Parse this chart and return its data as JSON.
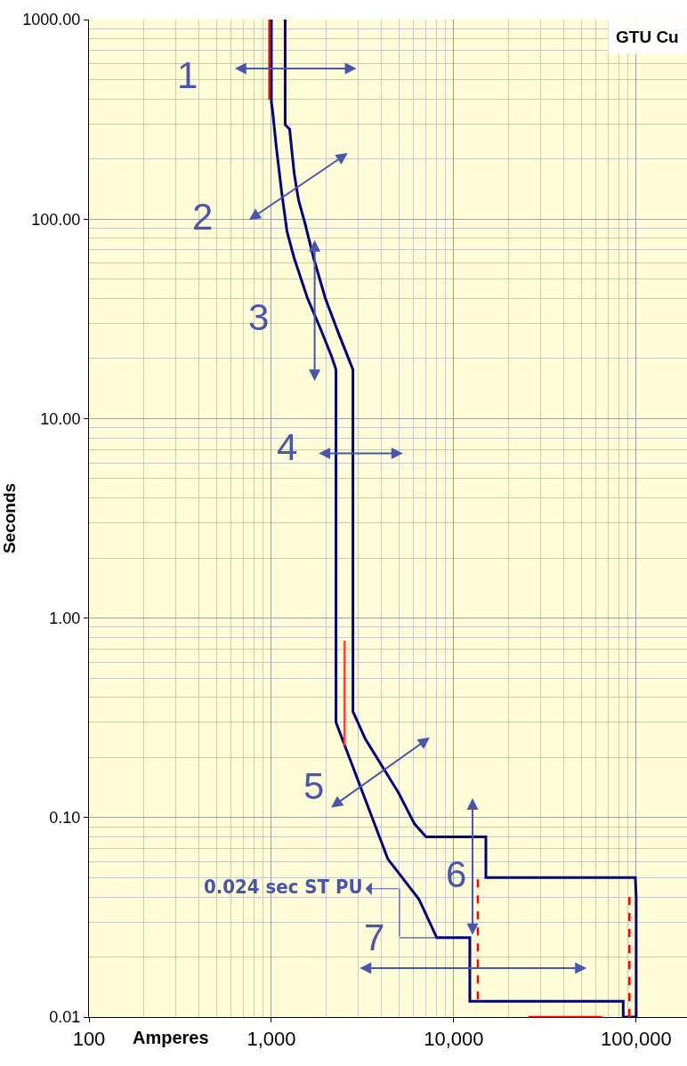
{
  "chart_data": {
    "type": "line",
    "title": "GTU Cu",
    "xlabel": "Amperes",
    "ylabel": "Seconds",
    "log": "xy",
    "grid": true,
    "marker": "none",
    "xlim": [
      100,
      190000
    ],
    "xticks": [
      100,
      {
        "value": 1000,
        "label": "1,000"
      },
      {
        "value": 10000,
        "label": "10,000"
      },
      {
        "value": 100000,
        "label": "100,000"
      }
    ],
    "ylim": [
      0.01,
      1000
    ],
    "yticks": [
      {
        "value": 0.01,
        "label": "0.01"
      },
      {
        "value": 0.1,
        "label": "0.10"
      },
      {
        "value": 1,
        "label": "1.00"
      },
      {
        "value": 10,
        "label": "10.00"
      },
      {
        "value": 100,
        "label": "100.00"
      },
      {
        "value": 1000,
        "label": "1000.00"
      }
    ],
    "annotations": [
      "1",
      "2",
      "3",
      "4",
      "5",
      "6",
      "7",
      "0.024 sec ST PU"
    ],
    "series": [
      {
        "color": "#000080",
        "line_style": "solid",
        "x": [
          1000,
          1000,
          1016,
          1064,
          1138,
          1218,
          1334,
          1578,
          1868,
          2138,
          2260,
          2260,
          4350,
          6440,
          8070,
          12250,
          12250,
          84900,
          84900,
          100000
        ],
        "values": [
          1000,
          385,
          347,
          230,
          137,
          86.6,
          63.6,
          40.1,
          27.9,
          20.5,
          17.6,
          0.3,
          0.062,
          0.039,
          0.025,
          0.025,
          0.012,
          0.012,
          0.01,
          0.01
        ]
      },
      {
        "color": "#000080",
        "line_style": "solid",
        "x": [
          1190,
          1190,
          1259,
          1334,
          1410,
          1525,
          1706,
          1976,
          2340,
          2800,
          2800,
          3280,
          4980,
          6090,
          7050,
          15000,
          15000,
          99000,
          100000,
          100000
        ],
        "values": [
          1000,
          297,
          282,
          169,
          124,
          96,
          63.6,
          40.1,
          26.6,
          17.6,
          0.34,
          0.247,
          0.133,
          0.093,
          0.08,
          0.08,
          0.05,
          0.05,
          0.04,
          0.01
        ]
      },
      {
        "color": "#ff0000",
        "line_style": "solid",
        "x": [
          975,
          975
        ],
        "values": [
          1000,
          396
        ]
      },
      {
        "color": "#ff4040",
        "line_style": "solid",
        "x": [
          2520,
          2520
        ],
        "values": [
          0.77,
          0.23
        ]
      },
      {
        "color": "#ff0000",
        "line_style": "dashed",
        "x": [
          13550,
          13550
        ],
        "values": [
          0.049,
          0.012
        ]
      },
      {
        "color": "#ff0000",
        "line_style": "dashed",
        "x": [
          91800,
          91800
        ],
        "values": [
          0.04,
          0.01
        ]
      },
      {
        "color": "#ff0000",
        "line_style": "solid",
        "x": [
          25700,
          65000
        ],
        "values": [
          0.01,
          0.01
        ]
      }
    ]
  }
}
